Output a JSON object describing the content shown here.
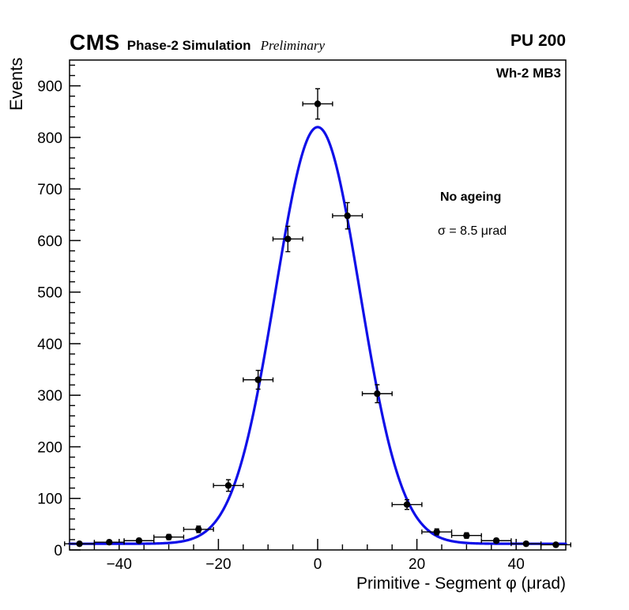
{
  "header": {
    "experiment": "CMS",
    "label": "Phase-2 Simulation",
    "sublabel": "Preliminary",
    "right_label": "PU 200"
  },
  "annotations": {
    "region": "Wh-2 MB3",
    "scenario": "No ageing",
    "sigma": "σ = 8.5 μrad"
  },
  "chart_data": {
    "type": "scatter",
    "title": "",
    "xlabel": "Primitive - Segment φ (μrad)",
    "ylabel": "Events",
    "xlim": [
      -50,
      50
    ],
    "ylim": [
      0,
      950
    ],
    "xticks": [
      -40,
      -20,
      0,
      20,
      40
    ],
    "yticks": [
      0,
      100,
      200,
      300,
      400,
      500,
      600,
      700,
      800,
      900
    ],
    "x_minor_step": 5,
    "y_minor_step": 20,
    "grid": false,
    "legend": "none",
    "axis_color": "#000000",
    "points": {
      "x": [
        -48,
        -42,
        -36,
        -30,
        -24,
        -18,
        -12,
        -6,
        0,
        6,
        12,
        18,
        24,
        30,
        36,
        42,
        48
      ],
      "y": [
        12,
        15,
        18,
        25,
        40,
        125,
        330,
        603,
        865,
        648,
        303,
        88,
        35,
        28,
        18,
        12,
        10
      ],
      "yerr": [
        3.5,
        3.9,
        4.2,
        5.0,
        6.3,
        11.2,
        18.2,
        24.6,
        29.4,
        25.5,
        17.4,
        9.4,
        5.9,
        5.3,
        4.2,
        3.5,
        3.2
      ],
      "xerr": 3,
      "marker_color": "#000000"
    },
    "fit": {
      "type": "gaussian+const",
      "baseline": 12,
      "amplitude": 808,
      "mean": 0,
      "sigma": 8.5,
      "color": "#0f0fe8",
      "width": 3.2
    }
  }
}
